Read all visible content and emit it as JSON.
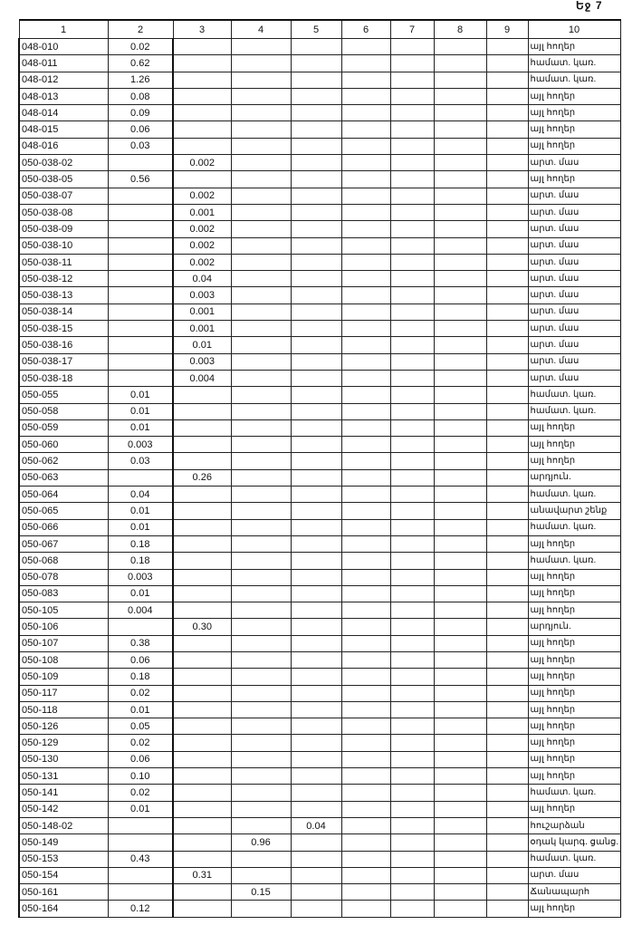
{
  "page_label": "Եջ 7",
  "columns": [
    "1",
    "2",
    "3",
    "4",
    "5",
    "6",
    "7",
    "8",
    "9",
    "10"
  ],
  "rows": [
    [
      "048-010",
      "0.02",
      "",
      "",
      "",
      "",
      "",
      "",
      "",
      "այլ հողեր"
    ],
    [
      "048-011",
      "0.62",
      "",
      "",
      "",
      "",
      "",
      "",
      "",
      "համատ. կառ."
    ],
    [
      "048-012",
      "1.26",
      "",
      "",
      "",
      "",
      "",
      "",
      "",
      "համատ. կառ."
    ],
    [
      "048-013",
      "0.08",
      "",
      "",
      "",
      "",
      "",
      "",
      "",
      "այլ հողեր"
    ],
    [
      "048-014",
      "0.09",
      "",
      "",
      "",
      "",
      "",
      "",
      "",
      "այլ հողեր"
    ],
    [
      "048-015",
      "0.06",
      "",
      "",
      "",
      "",
      "",
      "",
      "",
      "այլ հողեր"
    ],
    [
      "048-016",
      "0.03",
      "",
      "",
      "",
      "",
      "",
      "",
      "",
      "այլ հողեր"
    ],
    [
      "050-038-02",
      "",
      "0.002",
      "",
      "",
      "",
      "",
      "",
      "",
      "արտ. մաս"
    ],
    [
      "050-038-05",
      "0.56",
      "",
      "",
      "",
      "",
      "",
      "",
      "",
      "այլ հողեր"
    ],
    [
      "050-038-07",
      "",
      "0.002",
      "",
      "",
      "",
      "",
      "",
      "",
      "արտ. մաս"
    ],
    [
      "050-038-08",
      "",
      "0.001",
      "",
      "",
      "",
      "",
      "",
      "",
      "արտ. մաս"
    ],
    [
      "050-038-09",
      "",
      "0.002",
      "",
      "",
      "",
      "",
      "",
      "",
      "արտ. մաս"
    ],
    [
      "050-038-10",
      "",
      "0.002",
      "",
      "",
      "",
      "",
      "",
      "",
      "արտ. մաս"
    ],
    [
      "050-038-11",
      "",
      "0.002",
      "",
      "",
      "",
      "",
      "",
      "",
      "արտ. մաս"
    ],
    [
      "050-038-12",
      "",
      "0.04",
      "",
      "",
      "",
      "",
      "",
      "",
      "արտ. մաս"
    ],
    [
      "050-038-13",
      "",
      "0.003",
      "",
      "",
      "",
      "",
      "",
      "",
      "արտ. մաս"
    ],
    [
      "050-038-14",
      "",
      "0.001",
      "",
      "",
      "",
      "",
      "",
      "",
      "արտ. մաս"
    ],
    [
      "050-038-15",
      "",
      "0.001",
      "",
      "",
      "",
      "",
      "",
      "",
      "արտ. մաս"
    ],
    [
      "050-038-16",
      "",
      "0.01",
      "",
      "",
      "",
      "",
      "",
      "",
      "արտ. մաս"
    ],
    [
      "050-038-17",
      "",
      "0.003",
      "",
      "",
      "",
      "",
      "",
      "",
      "արտ. մաս"
    ],
    [
      "050-038-18",
      "",
      "0.004",
      "",
      "",
      "",
      "",
      "",
      "",
      "արտ. մաս"
    ],
    [
      "050-055",
      "0.01",
      "",
      "",
      "",
      "",
      "",
      "",
      "",
      "համատ. կառ."
    ],
    [
      "050-058",
      "0.01",
      "",
      "",
      "",
      "",
      "",
      "",
      "",
      "համատ. կառ."
    ],
    [
      "050-059",
      "0.01",
      "",
      "",
      "",
      "",
      "",
      "",
      "",
      "այլ հողեր"
    ],
    [
      "050-060",
      "0.003",
      "",
      "",
      "",
      "",
      "",
      "",
      "",
      "այլ հողեր"
    ],
    [
      "050-062",
      "0.03",
      "",
      "",
      "",
      "",
      "",
      "",
      "",
      "այլ հողեր"
    ],
    [
      "050-063",
      "",
      "0.26",
      "",
      "",
      "",
      "",
      "",
      "",
      "արդյուն."
    ],
    [
      "050-064",
      "0.04",
      "",
      "",
      "",
      "",
      "",
      "",
      "",
      "համատ. կառ."
    ],
    [
      "050-065",
      "0.01",
      "",
      "",
      "",
      "",
      "",
      "",
      "",
      "անավարտ շենք"
    ],
    [
      "050-066",
      "0.01",
      "",
      "",
      "",
      "",
      "",
      "",
      "",
      "համատ. կառ."
    ],
    [
      "050-067",
      "0.18",
      "",
      "",
      "",
      "",
      "",
      "",
      "",
      "այլ հողեր"
    ],
    [
      "050-068",
      "0.18",
      "",
      "",
      "",
      "",
      "",
      "",
      "",
      "համատ. կառ."
    ],
    [
      "050-078",
      "0.003",
      "",
      "",
      "",
      "",
      "",
      "",
      "",
      "այլ հողեր"
    ],
    [
      "050-083",
      "0.01",
      "",
      "",
      "",
      "",
      "",
      "",
      "",
      "այլ հողեր"
    ],
    [
      "050-105",
      "0.004",
      "",
      "",
      "",
      "",
      "",
      "",
      "",
      "այլ հողեր"
    ],
    [
      "050-106",
      "",
      "0.30",
      "",
      "",
      "",
      "",
      "",
      "",
      "արդյուն."
    ],
    [
      "050-107",
      "0.38",
      "",
      "",
      "",
      "",
      "",
      "",
      "",
      "այլ հողեր"
    ],
    [
      "050-108",
      "0.06",
      "",
      "",
      "",
      "",
      "",
      "",
      "",
      "այլ հողեր"
    ],
    [
      "050-109",
      "0.18",
      "",
      "",
      "",
      "",
      "",
      "",
      "",
      "այլ հողեր"
    ],
    [
      "050-117",
      "0.02",
      "",
      "",
      "",
      "",
      "",
      "",
      "",
      "այլ հողեր"
    ],
    [
      "050-118",
      "0.01",
      "",
      "",
      "",
      "",
      "",
      "",
      "",
      "այլ հողեր"
    ],
    [
      "050-126",
      "0.05",
      "",
      "",
      "",
      "",
      "",
      "",
      "",
      "այլ հողեր"
    ],
    [
      "050-129",
      "0.02",
      "",
      "",
      "",
      "",
      "",
      "",
      "",
      "այլ հողեր"
    ],
    [
      "050-130",
      "0.06",
      "",
      "",
      "",
      "",
      "",
      "",
      "",
      "այլ հողեր"
    ],
    [
      "050-131",
      "0.10",
      "",
      "",
      "",
      "",
      "",
      "",
      "",
      "այլ հողեր"
    ],
    [
      "050-141",
      "0.02",
      "",
      "",
      "",
      "",
      "",
      "",
      "",
      "համատ. կառ."
    ],
    [
      "050-142",
      "0.01",
      "",
      "",
      "",
      "",
      "",
      "",
      "",
      "այլ հողեր"
    ],
    [
      "050-148-02",
      "",
      "",
      "",
      "0.04",
      "",
      "",
      "",
      "",
      "հուշարձան"
    ],
    [
      "050-149",
      "",
      "",
      "0.96",
      "",
      "",
      "",
      "",
      "",
      "օդակ կարգ. ցանց."
    ],
    [
      "050-153",
      "0.43",
      "",
      "",
      "",
      "",
      "",
      "",
      "",
      "համատ. կառ."
    ],
    [
      "050-154",
      "",
      "0.31",
      "",
      "",
      "",
      "",
      "",
      "",
      "արտ. մաս"
    ],
    [
      "050-161",
      "",
      "",
      "0.15",
      "",
      "",
      "",
      "",
      "",
      "Ճանապարհ"
    ],
    [
      "050-164",
      "0.12",
      "",
      "",
      "",
      "",
      "",
      "",
      "",
      "այլ հողեր"
    ]
  ]
}
